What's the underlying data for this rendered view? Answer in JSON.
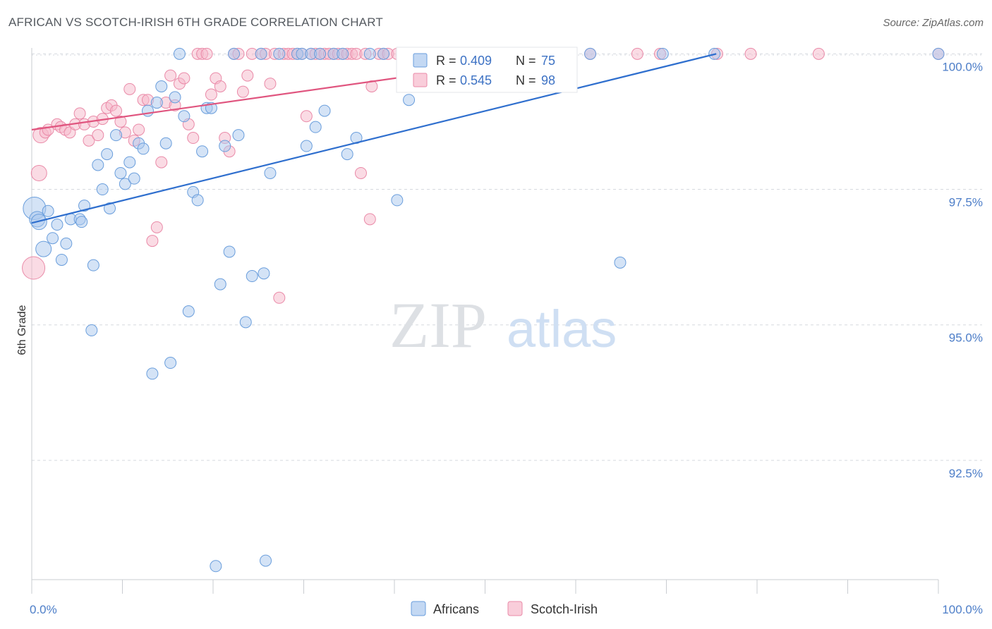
{
  "title": "AFRICAN VS SCOTCH-IRISH 6TH GRADE CORRELATION CHART",
  "source": "Source: ZipAtlas.com",
  "watermark": {
    "zip": "ZIP",
    "atlas": "atlas"
  },
  "colors": {
    "africans_fill": "#a9c8ee",
    "africans_stroke": "#6a9edc",
    "africans_line": "#2f6fce",
    "scotch_fill": "#f6b8ca",
    "scotch_stroke": "#ea8aa8",
    "scotch_line": "#e0557f",
    "axis_text": "#4d7ec8",
    "grid": "#d5d9df"
  },
  "legend": {
    "rows": [
      {
        "r_label": "R =",
        "r_value": "0.409",
        "n_label": "N =",
        "n_value": "75"
      },
      {
        "r_label": "R =",
        "r_value": "0.545",
        "n_label": "N =",
        "n_value": "98"
      }
    ],
    "bottom": [
      "Africans",
      "Scotch-Irish"
    ]
  },
  "chart_data": {
    "type": "scatter",
    "title": "AFRICAN VS SCOTCH-IRISH 6TH GRADE CORRELATION CHART",
    "xlabel": "",
    "ylabel": "6th Grade",
    "xlim": [
      0,
      100
    ],
    "ylim": [
      90.3,
      100.2
    ],
    "x_tick_labels": [
      "0.0%",
      "100.0%"
    ],
    "y_ticks": [
      92.5,
      95.0,
      97.5,
      100.0
    ],
    "y_tick_labels": [
      "92.5%",
      "95.0%",
      "97.5%",
      "100.0%"
    ],
    "grid": true,
    "series": [
      {
        "name": "Africans",
        "R": 0.409,
        "N": 75,
        "trend": {
          "x0": 0,
          "y0": 96.88,
          "x1": 75.5,
          "y1": 100.0
        },
        "points": [
          [
            0.3,
            97.15,
            3
          ],
          [
            0.6,
            96.95,
            2
          ],
          [
            0.8,
            96.9,
            2
          ],
          [
            1.3,
            96.4,
            2
          ],
          [
            1.8,
            97.1,
            1
          ],
          [
            2.3,
            96.6,
            1
          ],
          [
            2.8,
            96.85,
            1
          ],
          [
            3.3,
            96.2,
            1
          ],
          [
            3.8,
            96.5,
            1
          ],
          [
            4.3,
            96.95,
            1
          ],
          [
            5.3,
            96.95,
            1
          ],
          [
            5.5,
            96.9,
            1
          ],
          [
            5.8,
            97.2,
            1
          ],
          [
            6.8,
            96.1,
            1
          ],
          [
            6.6,
            94.9,
            1
          ],
          [
            7.3,
            97.95,
            1
          ],
          [
            7.8,
            97.5,
            1
          ],
          [
            8.3,
            98.15,
            1
          ],
          [
            8.6,
            97.15,
            1
          ],
          [
            9.3,
            98.5,
            1
          ],
          [
            9.8,
            97.8,
            1
          ],
          [
            10.3,
            97.6,
            1
          ],
          [
            10.8,
            98.0,
            1
          ],
          [
            11.3,
            97.7,
            1
          ],
          [
            11.8,
            98.35,
            1
          ],
          [
            12.3,
            98.25,
            1
          ],
          [
            12.8,
            98.95,
            1
          ],
          [
            13.3,
            94.1,
            1
          ],
          [
            13.8,
            99.1,
            1
          ],
          [
            14.3,
            99.4,
            1
          ],
          [
            14.8,
            98.35,
            1
          ],
          [
            15.3,
            94.3,
            1
          ],
          [
            15.8,
            99.2,
            1
          ],
          [
            16.3,
            100.0,
            1
          ],
          [
            16.8,
            98.85,
            1
          ],
          [
            17.3,
            95.25,
            1
          ],
          [
            17.8,
            97.45,
            1
          ],
          [
            18.3,
            97.3,
            1
          ],
          [
            18.8,
            98.2,
            1
          ],
          [
            19.3,
            99.0,
            1
          ],
          [
            19.8,
            99.0,
            1
          ],
          [
            20.3,
            90.55,
            1
          ],
          [
            20.8,
            95.75,
            1
          ],
          [
            21.3,
            98.3,
            1
          ],
          [
            21.8,
            96.35,
            1
          ],
          [
            22.3,
            100.0,
            1
          ],
          [
            22.8,
            98.5,
            1
          ],
          [
            23.6,
            95.05,
            1
          ],
          [
            24.3,
            95.9,
            1
          ],
          [
            25.3,
            100.0,
            1
          ],
          [
            25.8,
            90.65,
            1
          ],
          [
            25.6,
            95.95,
            1
          ],
          [
            26.3,
            97.8,
            1
          ],
          [
            27.3,
            100.0,
            1
          ],
          [
            29.3,
            100.0,
            1
          ],
          [
            29.8,
            100.0,
            1
          ],
          [
            30.3,
            98.3,
            1
          ],
          [
            30.8,
            100.0,
            1
          ],
          [
            31.3,
            98.65,
            1
          ],
          [
            31.8,
            100.0,
            1
          ],
          [
            32.3,
            98.95,
            1
          ],
          [
            33.3,
            100.0,
            1
          ],
          [
            34.3,
            100.0,
            1
          ],
          [
            34.8,
            98.15,
            1
          ],
          [
            35.8,
            98.45,
            1
          ],
          [
            37.3,
            100.0,
            1
          ],
          [
            38.8,
            100.0,
            1
          ],
          [
            40.3,
            97.3,
            1
          ],
          [
            41.6,
            99.15,
            1
          ],
          [
            54.8,
            100.0,
            1
          ],
          [
            61.6,
            100.0,
            1
          ],
          [
            64.9,
            96.15,
            1
          ],
          [
            69.6,
            100.0,
            1
          ],
          [
            75.3,
            100.0,
            1
          ],
          [
            100.0,
            100.0,
            1
          ]
        ]
      },
      {
        "name": "Scotch-Irish",
        "R": 0.545,
        "N": 98,
        "trend": {
          "x0": 0,
          "y0": 98.6,
          "x1": 59.0,
          "y1": 100.0
        },
        "points": [
          [
            0.2,
            96.05,
            3
          ],
          [
            0.8,
            97.8,
            2
          ],
          [
            1.0,
            98.5,
            2
          ],
          [
            1.5,
            98.55,
            1
          ],
          [
            1.8,
            98.6,
            1
          ],
          [
            2.8,
            98.7,
            1
          ],
          [
            3.2,
            98.65,
            1
          ],
          [
            3.7,
            98.6,
            1
          ],
          [
            4.2,
            98.55,
            1
          ],
          [
            4.8,
            98.7,
            1
          ],
          [
            5.3,
            98.9,
            1
          ],
          [
            5.8,
            98.7,
            1
          ],
          [
            6.3,
            98.4,
            1
          ],
          [
            6.8,
            98.75,
            1
          ],
          [
            7.3,
            98.5,
            1
          ],
          [
            7.8,
            98.8,
            1
          ],
          [
            8.3,
            99.0,
            1
          ],
          [
            8.8,
            99.05,
            1
          ],
          [
            9.3,
            98.95,
            1
          ],
          [
            9.8,
            98.75,
            1
          ],
          [
            10.3,
            98.55,
            1
          ],
          [
            10.8,
            99.35,
            1
          ],
          [
            11.3,
            98.4,
            1
          ],
          [
            11.8,
            98.6,
            1
          ],
          [
            12.3,
            99.15,
            1
          ],
          [
            12.8,
            99.15,
            1
          ],
          [
            13.3,
            96.55,
            1
          ],
          [
            13.8,
            96.8,
            1
          ],
          [
            14.3,
            98.0,
            1
          ],
          [
            14.8,
            99.1,
            1
          ],
          [
            15.3,
            99.6,
            1
          ],
          [
            15.8,
            99.05,
            1
          ],
          [
            16.3,
            99.45,
            1
          ],
          [
            16.8,
            99.55,
            1
          ],
          [
            17.3,
            98.7,
            1
          ],
          [
            17.8,
            98.45,
            1
          ],
          [
            18.3,
            100.0,
            1
          ],
          [
            18.8,
            100.0,
            1
          ],
          [
            19.3,
            100.0,
            1
          ],
          [
            19.8,
            99.25,
            1
          ],
          [
            20.3,
            99.55,
            1
          ],
          [
            20.8,
            99.4,
            1
          ],
          [
            21.3,
            98.45,
            1
          ],
          [
            21.8,
            98.2,
            1
          ],
          [
            22.3,
            100.0,
            1
          ],
          [
            22.8,
            100.0,
            1
          ],
          [
            23.3,
            99.3,
            1
          ],
          [
            23.8,
            99.6,
            1
          ],
          [
            24.3,
            100.0,
            1
          ],
          [
            25.3,
            100.0,
            1
          ],
          [
            25.8,
            100.0,
            1
          ],
          [
            26.3,
            99.45,
            1
          ],
          [
            26.8,
            100.0,
            1
          ],
          [
            27.3,
            95.5,
            1
          ],
          [
            27.8,
            100.0,
            1
          ],
          [
            28.3,
            100.0,
            1
          ],
          [
            28.8,
            100.0,
            1
          ],
          [
            29.3,
            100.0,
            1
          ],
          [
            29.8,
            100.0,
            1
          ],
          [
            30.3,
            98.85,
            1
          ],
          [
            30.8,
            100.0,
            1
          ],
          [
            31.3,
            100.0,
            1
          ],
          [
            31.8,
            100.0,
            1
          ],
          [
            32.3,
            100.0,
            1
          ],
          [
            32.8,
            100.0,
            1
          ],
          [
            33.3,
            100.0,
            1
          ],
          [
            33.8,
            100.0,
            1
          ],
          [
            34.3,
            100.0,
            1
          ],
          [
            34.8,
            100.0,
            1
          ],
          [
            35.3,
            100.0,
            1
          ],
          [
            35.8,
            100.0,
            1
          ],
          [
            36.3,
            97.8,
            1
          ],
          [
            36.8,
            100.0,
            1
          ],
          [
            37.3,
            96.95,
            1
          ],
          [
            37.5,
            99.4,
            1
          ],
          [
            38.3,
            100.0,
            1
          ],
          [
            38.8,
            100.0,
            1
          ],
          [
            39.3,
            100.0,
            1
          ],
          [
            40.3,
            100.0,
            1
          ],
          [
            41.3,
            100.0,
            1
          ],
          [
            42.3,
            100.0,
            1
          ],
          [
            43.3,
            100.0,
            1
          ],
          [
            44.3,
            100.0,
            1
          ],
          [
            45.8,
            100.0,
            1
          ],
          [
            47.3,
            100.0,
            1
          ],
          [
            49.3,
            100.0,
            1
          ],
          [
            51.8,
            100.0,
            1
          ],
          [
            54.3,
            100.0,
            1
          ],
          [
            56.8,
            100.0,
            1
          ],
          [
            59.3,
            100.0,
            1
          ],
          [
            61.6,
            100.0,
            1
          ],
          [
            66.8,
            100.0,
            1
          ],
          [
            69.3,
            100.0,
            1
          ],
          [
            75.6,
            100.0,
            1
          ],
          [
            79.3,
            100.0,
            1
          ],
          [
            86.8,
            100.0,
            1
          ],
          [
            100.0,
            100.0,
            1
          ]
        ]
      }
    ]
  }
}
